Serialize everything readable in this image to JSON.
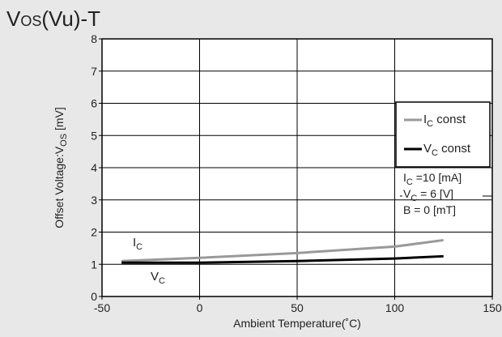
{
  "title": {
    "main": "V",
    "sub": "OS",
    "rest": "(Vu)-T"
  },
  "chart_data": {
    "type": "line",
    "xlabel": "Ambient Temperature(˚C)",
    "ylabel": {
      "main": "Offset Voltage:V",
      "sub": "OS",
      "rest": " [mV]"
    },
    "xlim": [
      -50,
      150
    ],
    "ylim": [
      0,
      8
    ],
    "xticks": [
      -50,
      0,
      50,
      100,
      150
    ],
    "yticks": [
      0,
      1,
      2,
      3,
      4,
      5,
      6,
      7,
      8
    ],
    "grid": true,
    "series": [
      {
        "name": "I_C const",
        "color": "#999999",
        "x": [
          -40,
          0,
          50,
          100,
          125
        ],
        "y": [
          1.1,
          1.2,
          1.35,
          1.55,
          1.75
        ]
      },
      {
        "name": "V_C const",
        "color": "#000000",
        "x": [
          -40,
          0,
          50,
          100,
          125
        ],
        "y": [
          1.05,
          1.05,
          1.1,
          1.18,
          1.25
        ]
      }
    ],
    "series_tags": [
      {
        "main": "I",
        "sub": "C"
      },
      {
        "main": "V",
        "sub": "C"
      }
    ],
    "legend": {
      "placement": "right",
      "items": [
        {
          "main": "I",
          "sub": "C",
          "rest": " const",
          "color": "#999999"
        },
        {
          "main": "V",
          "sub": "C",
          "rest": " const",
          "color": "#000000"
        }
      ]
    },
    "conditions": [
      {
        "main": "I",
        "sub": "C",
        "rest": " =10 [mA]"
      },
      {
        "main": "V",
        "sub": "C",
        "rest": " = 6  [V]"
      },
      {
        "main": "B",
        "sub": "",
        "rest": "  = 0  [mT]"
      }
    ]
  }
}
